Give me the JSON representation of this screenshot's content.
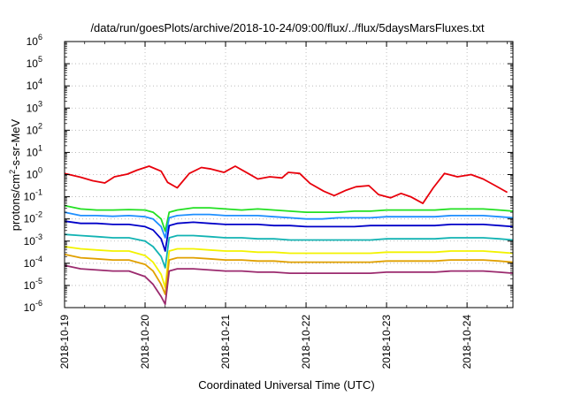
{
  "chart_data": {
    "type": "line",
    "title": "/data/run/goesPlots/archive/2018-10-24/09:00/flux/../flux/5daysMarsFluxes.txt",
    "xlabel": "Coordinated Universal Time (UTC)",
    "ylabel": {
      "base": "protons/cm",
      "sup": "2",
      "rest": "-s-sr-MeV"
    },
    "x_tick_labels": [
      "2018-10-19",
      "2018-10-20",
      "2018-10-21",
      "2018-10-22",
      "2018-10-23",
      "2018-10-24"
    ],
    "x_unit": "days since 2018-10-19 00:00 UTC",
    "xlim": [
      0,
      5.57
    ],
    "y_scale": "log",
    "ylim": [
      -6,
      6
    ],
    "y_tick_labels": [
      {
        "base": "10",
        "exp": "-6"
      },
      {
        "base": "10",
        "exp": "-5"
      },
      {
        "base": "10",
        "exp": "-4"
      },
      {
        "base": "10",
        "exp": "-3"
      },
      {
        "base": "10",
        "exp": "-2"
      },
      {
        "base": "10",
        "exp": "-1"
      },
      {
        "base": "10",
        "exp": "0"
      },
      {
        "base": "10",
        "exp": "1"
      },
      {
        "base": "10",
        "exp": "2"
      },
      {
        "base": "10",
        "exp": "3"
      },
      {
        "base": "10",
        "exp": "4"
      },
      {
        "base": "10",
        "exp": "5"
      },
      {
        "base": "10",
        "exp": "6"
      }
    ],
    "grid": true,
    "legend": "none",
    "series": [
      {
        "color": "#e8000b",
        "x": [
          0,
          0.2,
          0.35,
          0.5,
          0.62,
          0.78,
          0.9,
          1.05,
          1.2,
          1.28,
          1.4,
          1.55,
          1.7,
          1.82,
          1.98,
          2.12,
          2.28,
          2.4,
          2.55,
          2.7,
          2.78,
          2.92,
          3.05,
          3.22,
          3.35,
          3.5,
          3.62,
          3.78,
          3.9,
          4.05,
          4.18,
          4.3,
          4.45,
          4.58,
          4.72,
          4.88,
          5.05,
          5.2,
          5.35,
          5.5
        ],
        "log10_y": [
          0.05,
          -0.12,
          -0.28,
          -0.38,
          -0.1,
          0.02,
          0.2,
          0.38,
          0.15,
          -0.35,
          -0.6,
          0.05,
          0.32,
          0.25,
          0.1,
          0.38,
          0.05,
          -0.2,
          -0.1,
          -0.15,
          0.1,
          0.05,
          -0.4,
          -0.75,
          -0.95,
          -0.7,
          -0.55,
          -0.5,
          -0.9,
          -1.05,
          -0.85,
          -1.0,
          -1.3,
          -0.6,
          0.05,
          -0.1,
          0.0,
          -0.2,
          -0.5,
          -0.8
        ]
      },
      {
        "color": "#22e022",
        "x": [
          0,
          0.2,
          0.4,
          0.6,
          0.8,
          1.0,
          1.1,
          1.2,
          1.25,
          1.3,
          1.4,
          1.6,
          1.8,
          2.0,
          2.2,
          2.4,
          2.6,
          2.8,
          3.0,
          3.2,
          3.4,
          3.6,
          3.8,
          4.0,
          4.2,
          4.4,
          4.6,
          4.8,
          5.0,
          5.2,
          5.4,
          5.57
        ],
        "log10_y": [
          -1.4,
          -1.55,
          -1.6,
          -1.6,
          -1.58,
          -1.6,
          -1.7,
          -2.0,
          -2.55,
          -1.7,
          -1.6,
          -1.5,
          -1.5,
          -1.55,
          -1.6,
          -1.55,
          -1.6,
          -1.65,
          -1.7,
          -1.7,
          -1.7,
          -1.65,
          -1.65,
          -1.6,
          -1.6,
          -1.6,
          -1.6,
          -1.55,
          -1.55,
          -1.55,
          -1.6,
          -1.65
        ]
      },
      {
        "color": "#1e8fff",
        "x": [
          0,
          0.2,
          0.4,
          0.6,
          0.8,
          1.0,
          1.1,
          1.2,
          1.25,
          1.3,
          1.4,
          1.6,
          1.8,
          2.0,
          2.2,
          2.4,
          2.6,
          2.8,
          3.0,
          3.2,
          3.4,
          3.6,
          3.8,
          4.0,
          4.2,
          4.4,
          4.6,
          4.8,
          5.0,
          5.2,
          5.4,
          5.57
        ],
        "log10_y": [
          -1.7,
          -1.85,
          -1.85,
          -1.88,
          -1.85,
          -1.9,
          -2.0,
          -2.35,
          -2.85,
          -1.95,
          -1.85,
          -1.8,
          -1.8,
          -1.85,
          -1.85,
          -1.85,
          -1.9,
          -1.95,
          -2.0,
          -2.0,
          -1.95,
          -1.95,
          -1.95,
          -1.9,
          -1.9,
          -1.9,
          -1.9,
          -1.85,
          -1.85,
          -1.85,
          -1.9,
          -1.95
        ]
      },
      {
        "color": "#0000c8",
        "x": [
          0,
          0.2,
          0.4,
          0.6,
          0.8,
          1.0,
          1.1,
          1.2,
          1.25,
          1.3,
          1.4,
          1.6,
          1.8,
          2.0,
          2.2,
          2.4,
          2.6,
          2.8,
          3.0,
          3.2,
          3.4,
          3.6,
          3.8,
          4.0,
          4.2,
          4.4,
          4.6,
          4.8,
          5.0,
          5.2,
          5.4,
          5.57
        ],
        "log10_y": [
          -2.1,
          -2.2,
          -2.2,
          -2.25,
          -2.25,
          -2.35,
          -2.5,
          -2.9,
          -3.45,
          -2.3,
          -2.2,
          -2.15,
          -2.2,
          -2.25,
          -2.25,
          -2.25,
          -2.3,
          -2.3,
          -2.35,
          -2.35,
          -2.35,
          -2.35,
          -2.3,
          -2.3,
          -2.3,
          -2.3,
          -2.3,
          -2.25,
          -2.25,
          -2.25,
          -2.3,
          -2.35
        ]
      },
      {
        "color": "#12b3b3",
        "x": [
          0,
          0.2,
          0.4,
          0.6,
          0.8,
          1.0,
          1.1,
          1.2,
          1.25,
          1.3,
          1.4,
          1.6,
          1.8,
          2.0,
          2.2,
          2.4,
          2.6,
          2.8,
          3.0,
          3.2,
          3.4,
          3.6,
          3.8,
          4.0,
          4.2,
          4.4,
          4.6,
          4.8,
          5.0,
          5.2,
          5.4,
          5.57
        ],
        "log10_y": [
          -2.7,
          -2.75,
          -2.8,
          -2.85,
          -2.85,
          -3.0,
          -3.25,
          -3.7,
          -4.2,
          -2.85,
          -2.75,
          -2.75,
          -2.8,
          -2.85,
          -2.85,
          -2.9,
          -2.9,
          -2.95,
          -2.95,
          -2.95,
          -2.95,
          -2.95,
          -2.95,
          -2.9,
          -2.9,
          -2.9,
          -2.9,
          -2.85,
          -2.85,
          -2.85,
          -2.9,
          -2.95
        ]
      },
      {
        "color": "#f2f200",
        "x": [
          0,
          0.2,
          0.4,
          0.6,
          0.8,
          1.0,
          1.1,
          1.2,
          1.25,
          1.3,
          1.4,
          1.6,
          1.8,
          2.0,
          2.2,
          2.4,
          2.6,
          2.8,
          3.0,
          3.2,
          3.4,
          3.6,
          3.8,
          4.0,
          4.2,
          4.4,
          4.6,
          4.8,
          5.0,
          5.2,
          5.4,
          5.57
        ],
        "log10_y": [
          -3.25,
          -3.35,
          -3.4,
          -3.45,
          -3.45,
          -3.65,
          -3.95,
          -4.5,
          -5.1,
          -3.45,
          -3.35,
          -3.35,
          -3.4,
          -3.45,
          -3.45,
          -3.5,
          -3.5,
          -3.55,
          -3.55,
          -3.55,
          -3.55,
          -3.55,
          -3.55,
          -3.5,
          -3.5,
          -3.5,
          -3.5,
          -3.45,
          -3.45,
          -3.45,
          -3.5,
          -3.55
        ]
      },
      {
        "color": "#e0a000",
        "x": [
          0,
          0.2,
          0.4,
          0.6,
          0.8,
          1.0,
          1.1,
          1.2,
          1.25,
          1.3,
          1.4,
          1.6,
          1.8,
          2.0,
          2.2,
          2.4,
          2.6,
          2.8,
          3.0,
          3.2,
          3.4,
          3.6,
          3.8,
          4.0,
          4.2,
          4.4,
          4.6,
          4.8,
          5.0,
          5.2,
          5.4,
          5.57
        ],
        "log10_y": [
          -3.6,
          -3.75,
          -3.8,
          -3.85,
          -3.85,
          -4.05,
          -4.35,
          -4.95,
          -5.4,
          -3.85,
          -3.75,
          -3.75,
          -3.8,
          -3.85,
          -3.85,
          -3.9,
          -3.9,
          -3.95,
          -3.95,
          -3.95,
          -3.95,
          -3.95,
          -3.95,
          -3.9,
          -3.9,
          -3.9,
          -3.9,
          -3.85,
          -3.85,
          -3.85,
          -3.9,
          -3.95
        ]
      },
      {
        "color": "#9b2a6e",
        "x": [
          0,
          0.2,
          0.4,
          0.6,
          0.8,
          1.0,
          1.1,
          1.2,
          1.25,
          1.3,
          1.4,
          1.6,
          1.8,
          2.0,
          2.2,
          2.4,
          2.6,
          2.8,
          3.0,
          3.2,
          3.4,
          3.6,
          3.8,
          4.0,
          4.2,
          4.4,
          4.6,
          4.8,
          5.0,
          5.2,
          5.4,
          5.57
        ],
        "log10_y": [
          -4.1,
          -4.25,
          -4.3,
          -4.35,
          -4.35,
          -4.6,
          -4.95,
          -5.5,
          -5.85,
          -4.35,
          -4.25,
          -4.25,
          -4.3,
          -4.35,
          -4.35,
          -4.4,
          -4.4,
          -4.45,
          -4.45,
          -4.45,
          -4.45,
          -4.45,
          -4.45,
          -4.4,
          -4.4,
          -4.4,
          -4.4,
          -4.35,
          -4.35,
          -4.35,
          -4.4,
          -4.45
        ]
      }
    ]
  }
}
